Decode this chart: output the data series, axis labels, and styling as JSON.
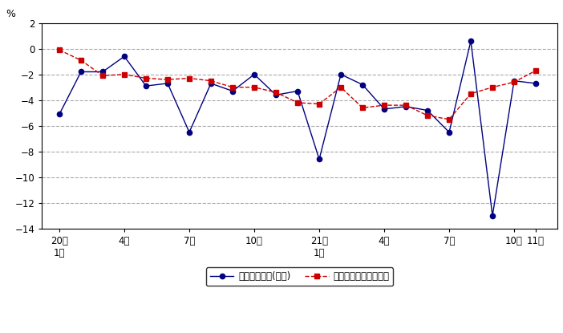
{
  "ylabel": "%",
  "ylim": [
    -14,
    2
  ],
  "yticks": [
    2,
    0,
    -2,
    -4,
    -6,
    -8,
    -10,
    -12,
    -14
  ],
  "background_color": "#ffffff",
  "series1_label": "現金給与総額(名目)",
  "series1_color": "#000080",
  "series1_x": [
    0,
    1,
    2,
    3,
    4,
    5,
    6,
    7,
    8,
    9,
    10,
    11,
    12,
    13,
    14,
    15,
    16,
    17,
    18,
    19,
    20,
    21,
    22
  ],
  "series1_values": [
    -5.1,
    -1.8,
    -1.8,
    -0.6,
    -2.9,
    -2.7,
    -6.5,
    -2.7,
    -3.3,
    -2.0,
    -3.6,
    -3.3,
    -8.6,
    -2.0,
    -2.8,
    -4.7,
    -4.5,
    -4.8,
    -6.5,
    0.6,
    -13.0,
    -2.5,
    -2.7
  ],
  "series2_label": "きまって支給する給与",
  "series2_color": "#cc0000",
  "series2_x": [
    0,
    1,
    2,
    3,
    4,
    5,
    6,
    7,
    8,
    9,
    10,
    11,
    12,
    13,
    14,
    15,
    16,
    17,
    18,
    19,
    20,
    21,
    22
  ],
  "series2_values": [
    -0.1,
    -0.9,
    -2.1,
    -2.0,
    -2.3,
    -2.4,
    -2.3,
    -2.5,
    -3.0,
    -3.0,
    -3.4,
    -4.2,
    -4.3,
    -3.0,
    -4.6,
    -4.4,
    -4.4,
    -5.2,
    -5.5,
    -3.5,
    -3.0,
    -2.6,
    -1.7
  ],
  "tick_positions": [
    0,
    3,
    6,
    9,
    12,
    15,
    18,
    21,
    22
  ],
  "tick_labels_line1": [
    "20年",
    "",
    "",
    "",
    "21年",
    "",
    "",
    "",
    ""
  ],
  "tick_labels_line2": [
    "1月",
    "4月",
    "7月",
    "10月",
    "1月",
    "4月",
    "7月",
    "10月",
    "11月"
  ],
  "xlim": [
    -0.8,
    23.0
  ]
}
